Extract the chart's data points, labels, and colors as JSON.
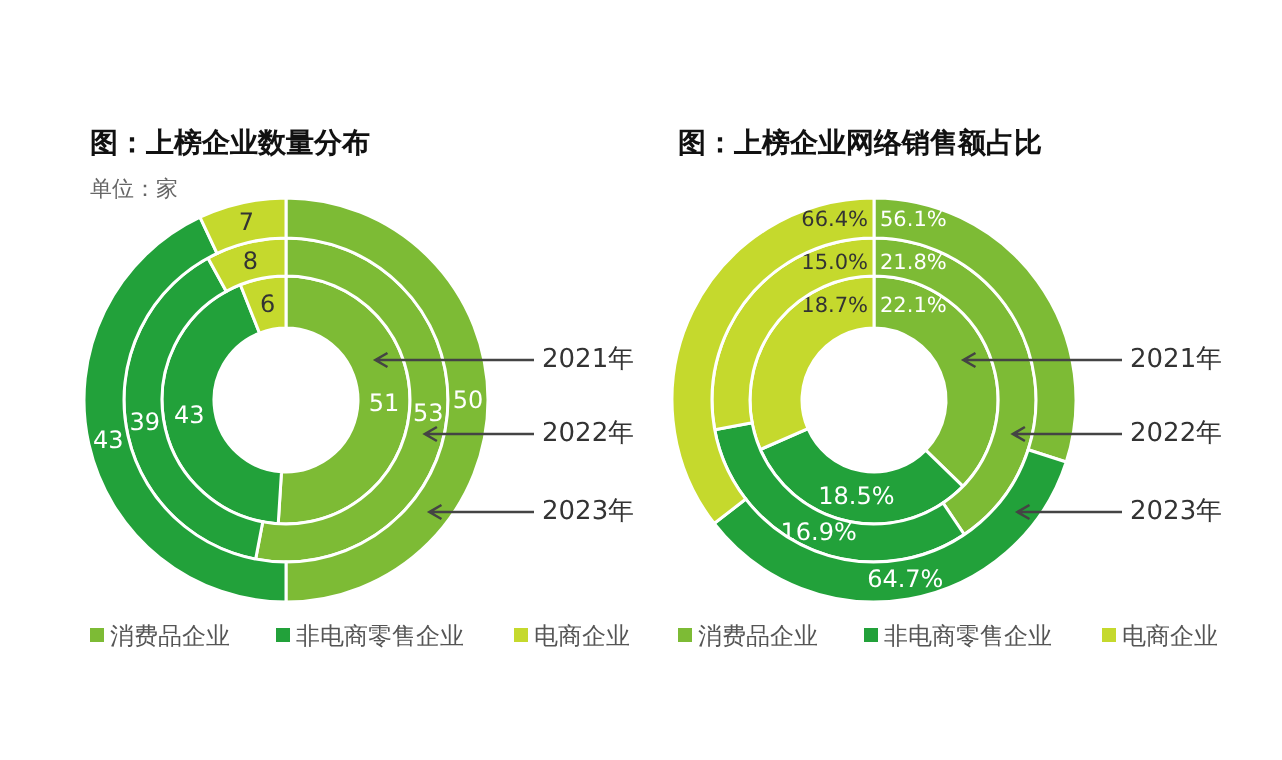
{
  "chart_data": [
    {
      "type": "donut",
      "title": "图：上榜企业数量分布",
      "subtitle": "单位：家",
      "categories": [
        "消费品企业",
        "非电商零售企业",
        "电商企业"
      ],
      "colors": [
        "#7dbb35",
        "#22a13a",
        "#c5d92d"
      ],
      "legend": "bottom",
      "data_labels": true,
      "series": [
        {
          "name": "2021年",
          "values": [
            51,
            43,
            6
          ]
        },
        {
          "name": "2022年",
          "values": [
            53,
            39,
            8
          ]
        },
        {
          "name": "2023年",
          "values": [
            50,
            43,
            7
          ]
        }
      ]
    },
    {
      "type": "donut",
      "title": "图：上榜企业网络销售额占比",
      "categories": [
        "消费品企业",
        "非电商零售企业",
        "电商企业"
      ],
      "colors": [
        "#7dbb35",
        "#22a13a",
        "#c5d92d"
      ],
      "legend": "bottom",
      "series": [
        {
          "name": "2021年",
          "values": [
            22.1,
            18.5,
            18.7
          ],
          "value_labels": [
            "22.1%",
            "18.5%",
            "18.7%"
          ]
        },
        {
          "name": "2022年",
          "values": [
            21.8,
            16.9,
            15.0
          ],
          "value_labels": [
            "21.8%",
            "16.9%",
            "15.0%"
          ]
        },
        {
          "name": "2023年",
          "values": [
            56.1,
            64.7,
            66.4
          ],
          "value_labels": [
            "56.1%",
            "64.7%",
            "66.4%"
          ]
        }
      ]
    }
  ]
}
